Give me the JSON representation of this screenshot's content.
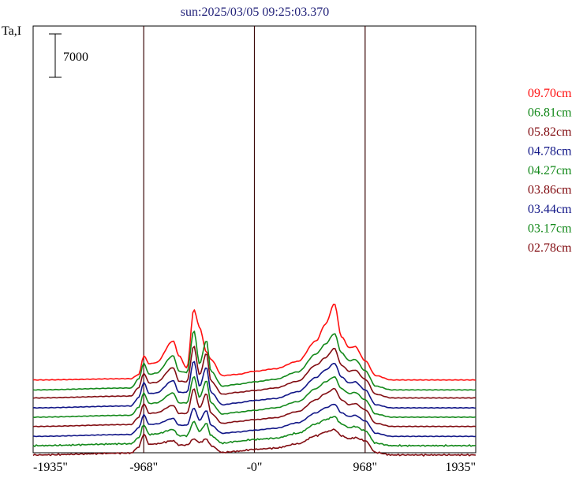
{
  "chart_data": {
    "type": "line",
    "title": "sun:2025/03/05 09:25:03.370",
    "ylabel": "Ta,I",
    "scale_bar_label": "7000",
    "xlim": [
      -1935,
      1935
    ],
    "x_ticks": [
      -1935,
      -968,
      0,
      968,
      1935
    ],
    "x_tick_labels": [
      "-1935\"",
      "-968\"",
      "-0\"",
      "968\"",
      "1935\""
    ],
    "vertical_lines_at": [
      -968,
      0,
      968
    ],
    "grid": false,
    "legend_placement": "right",
    "feature_x": [
      -1935,
      -1080,
      -1010,
      -968,
      -920,
      -860,
      -710,
      -660,
      -590,
      -530,
      -480,
      -420,
      -380,
      -280,
      -150,
      0,
      180,
      380,
      540,
      620,
      700,
      760,
      830,
      880,
      968,
      1060,
      1200,
      1935
    ],
    "series": [
      {
        "name": "09.70cm",
        "color": "#ff1010",
        "offset": 10600,
        "noise": 0,
        "values": [
          0,
          200,
          900,
          3900,
          2600,
          2800,
          6300,
          3900,
          1900,
          11400,
          8500,
          4500,
          3300,
          700,
          900,
          1400,
          1800,
          3000,
          6300,
          9000,
          12300,
          7000,
          5200,
          5400,
          3100,
          700,
          0,
          0
        ]
      },
      {
        "name": "06.81cm",
        "color": "#13891a",
        "offset": 9000,
        "noise": 0,
        "values": [
          0,
          300,
          1800,
          4300,
          2500,
          2700,
          5500,
          3000,
          2800,
          9600,
          4200,
          8000,
          3000,
          600,
          900,
          1300,
          1700,
          2900,
          5800,
          7400,
          9100,
          6000,
          4700,
          4900,
          3100,
          600,
          0,
          0
        ]
      },
      {
        "name": "05.82cm",
        "color": "#820d12",
        "offset": 7700,
        "noise": 0,
        "values": [
          0,
          300,
          1700,
          4000,
          2400,
          2500,
          4900,
          2700,
          2600,
          8400,
          3700,
          7200,
          2700,
          600,
          900,
          1200,
          1600,
          2700,
          5300,
          6500,
          8000,
          5300,
          4300,
          4500,
          3000,
          600,
          0,
          0
        ]
      },
      {
        "name": "04.78cm",
        "color": "#111687",
        "offset": 6100,
        "noise": 0,
        "values": [
          0,
          300,
          1700,
          4100,
          2300,
          2400,
          4400,
          2500,
          2500,
          7600,
          3500,
          6600,
          2500,
          500,
          800,
          1200,
          1500,
          2600,
          4900,
          6100,
          7200,
          5000,
          4000,
          4200,
          2900,
          500,
          0,
          0
        ]
      },
      {
        "name": "04.27cm",
        "color": "#13891a",
        "offset": 4600,
        "noise": 0,
        "values": [
          0,
          300,
          1600,
          3900,
          2200,
          2300,
          3900,
          2300,
          2300,
          6600,
          3200,
          5900,
          2300,
          500,
          800,
          1100,
          1500,
          2500,
          4600,
          5700,
          6500,
          4600,
          3800,
          4000,
          2800,
          500,
          0,
          0
        ]
      },
      {
        "name": "03.86cm",
        "color": "#820d12",
        "offset": 3100,
        "noise": 0,
        "values": [
          0,
          300,
          1500,
          3700,
          2100,
          2200,
          3400,
          2100,
          2100,
          6100,
          3000,
          5300,
          2100,
          500,
          800,
          1100,
          1400,
          2400,
          4300,
          5300,
          6100,
          4300,
          3500,
          3700,
          2700,
          500,
          0,
          0
        ]
      },
      {
        "name": "03.44cm",
        "color": "#111687",
        "offset": 1500,
        "noise": 0,
        "values": [
          0,
          300,
          1400,
          3500,
          1900,
          2000,
          2900,
          1800,
          1800,
          4600,
          2600,
          4200,
          1800,
          500,
          700,
          1000,
          1300,
          2200,
          3800,
          4600,
          5200,
          3800,
          3200,
          3400,
          2500,
          500,
          0,
          0
        ]
      },
      {
        "name": "03.17cm",
        "color": "#13891a",
        "offset": 0,
        "noise": 110,
        "values": [
          0,
          300,
          1300,
          3400,
          1800,
          1900,
          2600,
          1600,
          1600,
          3900,
          2300,
          3600,
          1600,
          400,
          700,
          1000,
          1200,
          2000,
          3500,
          4200,
          4700,
          3500,
          2900,
          3100,
          2400,
          400,
          0,
          0
        ]
      },
      {
        "name": "02.78cm",
        "color": "#820d12",
        "offset": -1500,
        "noise": 110,
        "values": [
          0,
          300,
          1300,
          3400,
          1700,
          1800,
          2300,
          1600,
          1600,
          2600,
          2000,
          2600,
          1500,
          400,
          600,
          900,
          1100,
          1800,
          3100,
          3700,
          4100,
          3100,
          2600,
          2800,
          2300,
          400,
          0,
          0
        ]
      }
    ]
  }
}
